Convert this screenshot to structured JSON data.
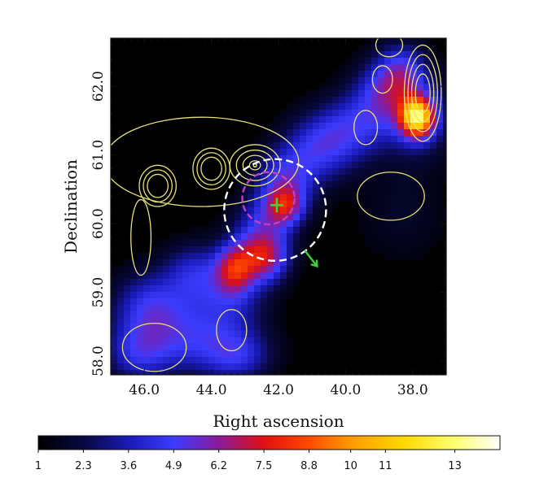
{
  "chart_data": {
    "type": "heatmap",
    "xlabel": "Right ascension",
    "ylabel": "Declination",
    "xlim": [
      47.0,
      37.0
    ],
    "ylim": [
      57.8,
      62.7
    ],
    "x_ticks": [
      {
        "value": 46.0,
        "label": "46.0"
      },
      {
        "value": 44.0,
        "label": "44.0"
      },
      {
        "value": 42.0,
        "label": "42.0"
      },
      {
        "value": 40.0,
        "label": "40.0"
      },
      {
        "value": 38.0,
        "label": "38.0"
      }
    ],
    "y_ticks": [
      {
        "value": 58.0,
        "label": "58.0"
      },
      {
        "value": 59.0,
        "label": "59.0"
      },
      {
        "value": 60.0,
        "label": "60.0"
      },
      {
        "value": 61.0,
        "label": "61.0"
      },
      {
        "value": 62.0,
        "label": "62.0"
      }
    ],
    "colorbar": {
      "ticks": [
        {
          "value": 1,
          "label": "1"
        },
        {
          "value": 2.3,
          "label": "2.3"
        },
        {
          "value": 3.6,
          "label": "3.6"
        },
        {
          "value": 4.9,
          "label": "4.9"
        },
        {
          "value": 6.2,
          "label": "6.2"
        },
        {
          "value": 7.5,
          "label": "7.5"
        },
        {
          "value": 8.8,
          "label": "8.8"
        },
        {
          "value": 10,
          "label": "10"
        },
        {
          "value": 11,
          "label": "11"
        },
        {
          "value": 13,
          "label": "13"
        }
      ],
      "range": [
        1,
        14.3
      ],
      "stops": [
        {
          "v": 1.0,
          "color": "#000000"
        },
        {
          "v": 2.3,
          "color": "#080840"
        },
        {
          "v": 3.6,
          "color": "#1a1ab8"
        },
        {
          "v": 4.9,
          "color": "#3c3cff"
        },
        {
          "v": 6.2,
          "color": "#8a1a9a"
        },
        {
          "v": 7.5,
          "color": "#e01010"
        },
        {
          "v": 8.8,
          "color": "#ff4a00"
        },
        {
          "v": 10.0,
          "color": "#ff9a00"
        },
        {
          "v": 11.5,
          "color": "#ffd800"
        },
        {
          "v": 13.0,
          "color": "#ffff70"
        },
        {
          "v": 14.3,
          "color": "#ffffff"
        }
      ]
    },
    "emission_blobs": [
      {
        "ra": 37.85,
        "dec": 61.55,
        "value": 10.5,
        "sra": 0.35,
        "sdec": 0.2
      },
      {
        "ra": 37.9,
        "dec": 61.55,
        "value": 3.5,
        "sra": 0.8,
        "sdec": 0.45
      },
      {
        "ra": 38.3,
        "dec": 62.2,
        "value": 4.2,
        "sra": 0.5,
        "sdec": 0.3
      },
      {
        "ra": 38.9,
        "dec": 61.9,
        "value": 4.0,
        "sra": 0.6,
        "sdec": 0.35
      },
      {
        "ra": 39.8,
        "dec": 61.4,
        "value": 3.8,
        "sra": 0.7,
        "sdec": 0.35
      },
      {
        "ra": 40.8,
        "dec": 61.1,
        "value": 4.2,
        "sra": 0.7,
        "sdec": 0.35
      },
      {
        "ra": 41.8,
        "dec": 60.6,
        "value": 4.6,
        "sra": 0.6,
        "sdec": 0.35
      },
      {
        "ra": 41.8,
        "dec": 60.25,
        "value": 5.0,
        "sra": 0.4,
        "sdec": 0.2
      },
      {
        "ra": 42.5,
        "dec": 59.9,
        "value": 4.0,
        "sra": 0.6,
        "sdec": 0.35
      },
      {
        "ra": 42.4,
        "dec": 59.5,
        "value": 5.4,
        "sra": 0.5,
        "sdec": 0.25
      },
      {
        "ra": 43.3,
        "dec": 59.35,
        "value": 5.6,
        "sra": 0.4,
        "sdec": 0.25
      },
      {
        "ra": 43.5,
        "dec": 59.0,
        "value": 3.6,
        "sra": 0.8,
        "sdec": 0.4
      },
      {
        "ra": 44.6,
        "dec": 59.3,
        "value": 3.2,
        "sra": 0.6,
        "sdec": 0.3
      },
      {
        "ra": 45.8,
        "dec": 58.8,
        "value": 4.3,
        "sra": 0.8,
        "sdec": 0.35
      },
      {
        "ra": 44.5,
        "dec": 58.3,
        "value": 4.0,
        "sra": 1.2,
        "sdec": 0.35
      },
      {
        "ra": 46.2,
        "dec": 58.1,
        "value": 3.6,
        "sra": 0.7,
        "sdec": 0.3
      },
      {
        "ra": 43.2,
        "dec": 58.05,
        "value": 3.4,
        "sra": 0.7,
        "sdec": 0.25
      },
      {
        "ra": 38.3,
        "dec": 60.1,
        "value": 1.8,
        "sra": 1.0,
        "sdec": 0.5
      }
    ],
    "radio_contours": [
      {
        "levels": 7,
        "ra": 42.7,
        "dec": 60.85,
        "rra": 0.75,
        "rdec": 0.3,
        "step": 0.26
      },
      {
        "levels": 3,
        "ra": 45.6,
        "dec": 60.55,
        "rra": 0.55,
        "rdec": 0.3,
        "step": 0.22
      },
      {
        "levels": 3,
        "ra": 44.0,
        "dec": 60.8,
        "rra": 0.55,
        "rdec": 0.3,
        "step": 0.22
      },
      {
        "levels": 1,
        "ra": 44.3,
        "dec": 60.9,
        "rra": 2.9,
        "rdec": 0.65,
        "step": 0
      },
      {
        "levels": 1,
        "ra": 46.1,
        "dec": 59.8,
        "rra": 0.3,
        "rdec": 0.55,
        "step": 0
      },
      {
        "levels": 1,
        "ra": 43.4,
        "dec": 58.45,
        "rra": 0.45,
        "rdec": 0.3,
        "step": 0
      },
      {
        "levels": 1,
        "ra": 45.7,
        "dec": 58.2,
        "rra": 0.95,
        "rdec": 0.35,
        "step": 0
      },
      {
        "levels": 1,
        "ra": 38.65,
        "dec": 60.4,
        "rra": 1.0,
        "rdec": 0.35,
        "step": 0
      },
      {
        "levels": 1,
        "ra": 39.4,
        "dec": 61.4,
        "rra": 0.35,
        "rdec": 0.25,
        "step": 0
      },
      {
        "levels": 1,
        "ra": 38.9,
        "dec": 62.1,
        "rra": 0.3,
        "rdec": 0.2,
        "step": 0
      },
      {
        "levels": 1,
        "ra": 38.7,
        "dec": 62.6,
        "rra": 0.4,
        "rdec": 0.17,
        "step": 0
      },
      {
        "levels": 4,
        "ra": 37.7,
        "dec": 61.9,
        "rra": 0.55,
        "rdec": 0.7,
        "step": 0.2
      }
    ],
    "markers": {
      "cross": {
        "ra": 42.05,
        "dec": 60.27,
        "color": "#3cd23c"
      },
      "inner_circle": {
        "ra": 42.3,
        "dec": 60.37,
        "radius_deg": 0.38,
        "color": "#c040c0"
      },
      "outer_circle": {
        "ra": 42.1,
        "dec": 60.2,
        "radius_deg": 0.74,
        "color": "#ffffff"
      },
      "arrow": {
        "ra_from": 41.2,
        "dec_from": 59.6,
        "ra_to": 40.85,
        "dec_to": 59.38,
        "color": "#3cd23c"
      }
    },
    "contour_color": "#e6e07a",
    "grid": false
  }
}
